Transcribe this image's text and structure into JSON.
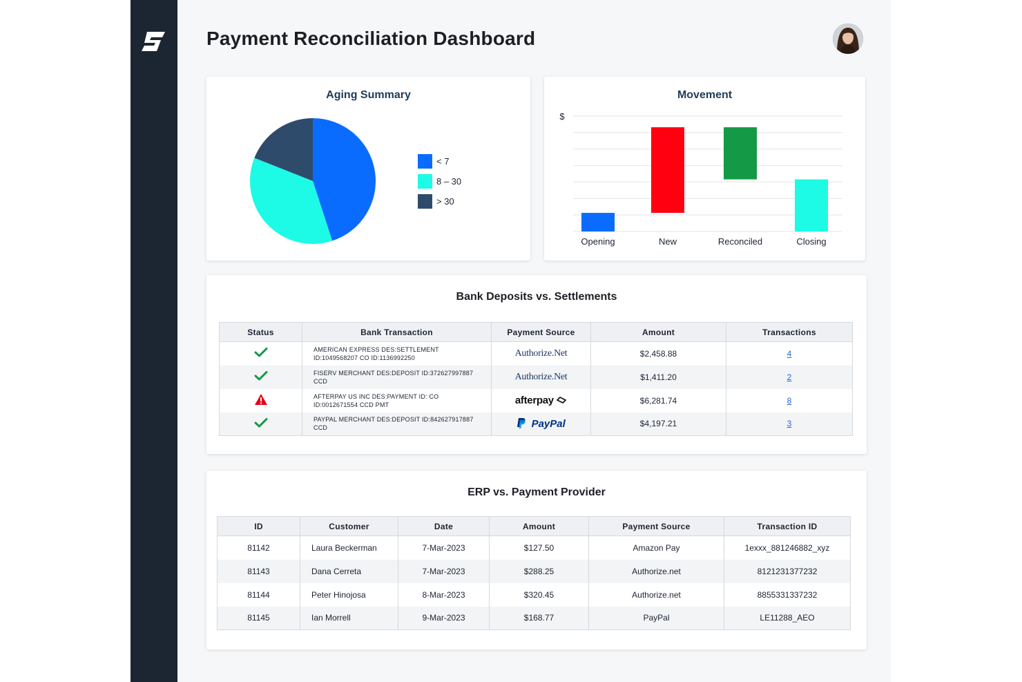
{
  "header": {
    "title": "Payment Reconciliation Dashboard"
  },
  "colors": {
    "sidebar": "#1b2632",
    "blue": "#0a6cff",
    "cyan": "#1dfbe6",
    "navy": "#2f4b6b",
    "red": "#ff0010",
    "green": "#149947",
    "link": "#2b63d8"
  },
  "icons": {
    "logo": "brand-logo-icon",
    "avatar": "user-avatar",
    "ok": "check-icon",
    "warn": "warning-icon"
  },
  "aging": {
    "title": "Aging Summary",
    "chart_data": {
      "type": "pie",
      "title": "Aging Summary",
      "slices": [
        {
          "label": "< 7",
          "value": 45,
          "color": "#0a6cff"
        },
        {
          "label": "8 – 30",
          "value": 36,
          "color": "#1dfbe6"
        },
        {
          "label": "> 30",
          "value": 19,
          "color": "#2f4b6b"
        }
      ],
      "legend": "right"
    }
  },
  "movement": {
    "title": "Movement",
    "chart_data": {
      "type": "bar",
      "subtype": "waterfall",
      "title": "Movement",
      "ylabel": "$",
      "categories": [
        "Opening",
        "New",
        "Reconciled",
        "Closing"
      ],
      "bars": [
        {
          "label": "Opening",
          "start": 0,
          "end": 1,
          "color": "#0a6cff"
        },
        {
          "label": "New",
          "start": 1,
          "end": 5.6,
          "color": "#ff0010"
        },
        {
          "label": "Reconciled",
          "start": 5.6,
          "end": 2.8,
          "color": "#149947"
        },
        {
          "label": "Closing",
          "start": 0,
          "end": 2.8,
          "color": "#1dfbe6"
        }
      ],
      "ylim": [
        0,
        6.2
      ],
      "grid": true
    }
  },
  "bank": {
    "title": "Bank Deposits vs. Settlements",
    "columns": [
      "Status",
      "Bank Transaction",
      "Payment Source",
      "Amount",
      "Transactions"
    ],
    "rows": [
      {
        "status": "ok",
        "desc_line1": "AMERICAN EXPRESS DES:SETTLEMENT",
        "desc_line2": "ID:1049568207 CO ID:1136992250",
        "source": "Authorize.Net",
        "amount": "$2,458.88",
        "transactions": "4"
      },
      {
        "status": "ok",
        "desc_line1": "FISERV MERCHANT DES:DEPOSIT ID:372627997887",
        "desc_line2": "CCD",
        "source": "Authorize.Net",
        "amount": "$1,411.20",
        "transactions": "2"
      },
      {
        "status": "warn",
        "desc_line1": "AFTERPAY US INC DES:PAYMENT ID: CO",
        "desc_line2": "ID:0012671554 CCD PMT",
        "source": "afterpay",
        "amount": "$6,281.74",
        "transactions": "8"
      },
      {
        "status": "ok",
        "desc_line1": "PAYPAL MERCHANT DES:DEPOSIT ID:842627917887",
        "desc_line2": "CCD",
        "source": "PayPal",
        "amount": "$4,197.21",
        "transactions": "3"
      }
    ]
  },
  "erp": {
    "title": "ERP vs. Payment Provider",
    "columns": [
      "ID",
      "Customer",
      "Date",
      "Amount",
      "Payment Source",
      "Transaction ID"
    ],
    "rows": [
      {
        "id": "81142",
        "customer": "Laura Beckerman",
        "date": "7-Mar-2023",
        "amount": "$127.50",
        "source": "Amazon Pay",
        "txn": "1exxx_881246882_xyz"
      },
      {
        "id": "81143",
        "customer": "Dana Cerreta",
        "date": "7-Mar-2023",
        "amount": "$288.25",
        "source": "Authorize.net",
        "txn": "8121231377232"
      },
      {
        "id": "81144",
        "customer": "Peter Hinojosa",
        "date": "8-Mar-2023",
        "amount": "$320.45",
        "source": "Authorize.net",
        "txn": "8855331337232"
      },
      {
        "id": "81145",
        "customer": "Ian Morrell",
        "date": "9-Mar-2023",
        "amount": "$168.77",
        "source": "PayPal",
        "txn": "LE11288_AEO"
      }
    ]
  }
}
